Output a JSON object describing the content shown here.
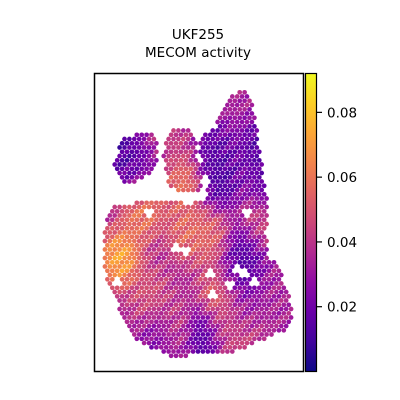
{
  "chart_data": {
    "type": "scatter",
    "subtype": "spatial-hex-spot-map",
    "title_line1": "UKF255",
    "title_line2": "MECOM activity",
    "xlabel": "",
    "ylabel": "",
    "axes_ticks_visible": false,
    "grid": false,
    "colormap": "plasma",
    "colorbar": {
      "range": [
        0.0,
        0.092
      ],
      "ticks": [
        0.02,
        0.04,
        0.06,
        0.08
      ],
      "tick_labels": [
        "0.02",
        "0.04",
        "0.06",
        "0.08"
      ],
      "placement": "right"
    },
    "value_field": {
      "mean": 0.034,
      "hotspots": [
        {
          "x": 0.12,
          "y": 0.62,
          "value": 0.085
        },
        {
          "x": 0.22,
          "y": 0.47,
          "value": 0.068
        },
        {
          "x": 0.28,
          "y": 0.4,
          "value": 0.06
        },
        {
          "x": 0.42,
          "y": 0.37,
          "value": 0.065
        },
        {
          "x": 0.44,
          "y": 0.53,
          "value": 0.063
        },
        {
          "x": 0.55,
          "y": 0.55,
          "value": 0.06
        },
        {
          "x": 0.6,
          "y": 0.73,
          "value": 0.062
        },
        {
          "x": 0.72,
          "y": 0.87,
          "value": 0.066
        },
        {
          "x": 0.37,
          "y": 0.86,
          "value": 0.055
        },
        {
          "x": 0.26,
          "y": 0.74,
          "value": 0.052
        },
        {
          "x": 0.8,
          "y": 0.5,
          "value": 0.05
        },
        {
          "x": 0.63,
          "y": 0.85,
          "value": 0.048
        },
        {
          "x": 0.36,
          "y": 0.22,
          "value": 0.045
        }
      ],
      "coldspots": [
        {
          "x": 0.6,
          "y": 0.36,
          "value": 0.006
        },
        {
          "x": 0.72,
          "y": 0.6,
          "value": 0.008
        },
        {
          "x": 0.58,
          "y": 0.26,
          "value": 0.01
        },
        {
          "x": 0.78,
          "y": 0.25,
          "value": 0.008
        },
        {
          "x": 0.82,
          "y": 0.38,
          "value": 0.012
        },
        {
          "x": 0.12,
          "y": 0.26,
          "value": 0.006
        },
        {
          "x": 0.23,
          "y": 0.33,
          "value": 0.01
        },
        {
          "x": 0.68,
          "y": 0.68,
          "value": 0.01
        },
        {
          "x": 0.33,
          "y": 0.88,
          "value": 0.012
        },
        {
          "x": 0.52,
          "y": 0.89,
          "value": 0.006
        },
        {
          "x": 0.72,
          "y": 0.84,
          "value": 0.012
        }
      ]
    }
  }
}
